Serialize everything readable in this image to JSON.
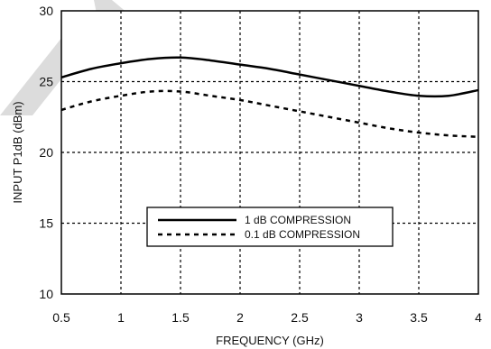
{
  "chart_data": {
    "type": "line",
    "title": "",
    "xlabel": "FREQUENCY (GHz)",
    "ylabel": "INPUT P1dB (dBm)",
    "xlim": [
      0.5,
      4
    ],
    "ylim": [
      10,
      30
    ],
    "x_ticks": [
      "0.5",
      "1",
      "1.5",
      "2",
      "2.5",
      "3",
      "3.5",
      "4"
    ],
    "y_ticks": [
      "10",
      "15",
      "20",
      "25",
      "30"
    ],
    "grid": true,
    "legend_position": "center-bottom",
    "series": [
      {
        "name": "1 dB COMPRESSION",
        "style": "solid",
        "color": "#000000",
        "x": [
          0.5,
          0.75,
          1.0,
          1.25,
          1.5,
          1.75,
          2.0,
          2.25,
          2.5,
          2.75,
          3.0,
          3.25,
          3.5,
          3.75,
          4.0
        ],
        "y": [
          25.3,
          25.9,
          26.3,
          26.6,
          26.7,
          26.5,
          26.2,
          25.9,
          25.5,
          25.1,
          24.7,
          24.3,
          24.0,
          24.0,
          24.4
        ]
      },
      {
        "name": "0.1 dB COMPRESSION",
        "style": "dashed",
        "color": "#000000",
        "x": [
          0.5,
          0.75,
          1.0,
          1.25,
          1.5,
          1.75,
          2.0,
          2.25,
          2.5,
          2.75,
          3.0,
          3.25,
          3.5,
          3.75,
          4.0
        ],
        "y": [
          23.0,
          23.6,
          24.0,
          24.3,
          24.3,
          24.0,
          23.7,
          23.3,
          22.9,
          22.5,
          22.1,
          21.7,
          21.4,
          21.2,
          21.1
        ]
      }
    ]
  }
}
